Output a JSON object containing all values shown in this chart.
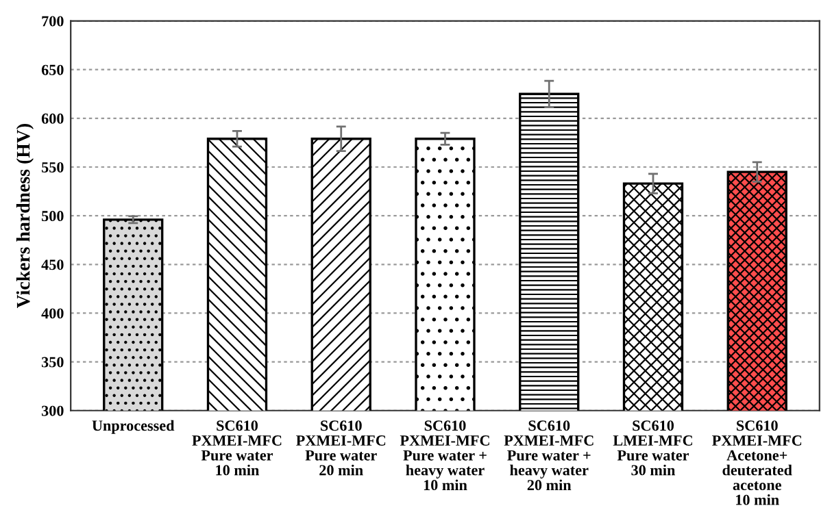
{
  "chart_data": {
    "type": "bar",
    "ylabel": "Vickers hardness (HV)",
    "categories": [
      "Unprocessed",
      "SC610\nPXMEI-MFC\nPure water\n10 min",
      "SC610\nPXMEI-MFC\nPure water\n20 min",
      "SC610\nPXMEI-MFC\nPure water +\nheavy water\n10 min",
      "SC610\nPXMEI-MFC\nPure water +\nheavy water\n20 min",
      "SC610\nLMEI-MFC\nPure water\n30 min",
      "SC610\nPXMEI-MFC\nAcetone+\ndeuterated\nacetone\n10 min"
    ],
    "values": [
      496,
      579,
      579,
      579,
      625,
      533,
      545
    ],
    "errors": [
      3.5,
      8,
      12.5,
      6,
      13.5,
      10,
      10
    ],
    "colors": [
      "#d9d9d9",
      "#ffffff",
      "#ffffff",
      "#ffffff",
      "#ffffff",
      "#ffffff",
      "#ff4d4d"
    ],
    "ylim": [
      300,
      700
    ],
    "yticks": [
      300,
      350,
      400,
      450,
      500,
      550,
      600,
      650,
      700
    ],
    "grid": "y"
  }
}
